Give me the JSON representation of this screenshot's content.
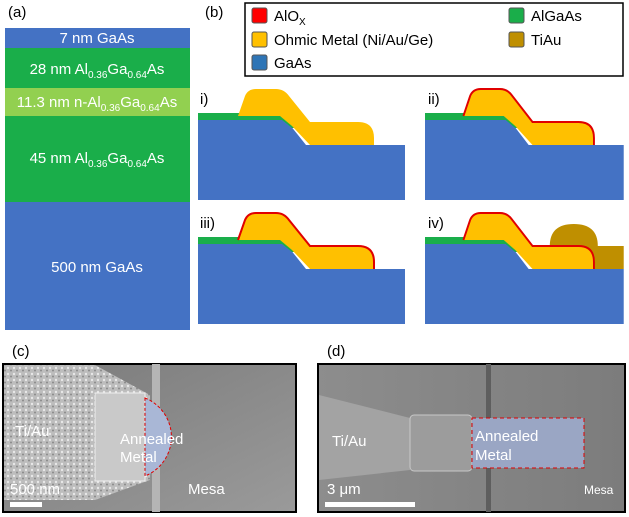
{
  "panel_a": {
    "label": "(a)",
    "layers": [
      [
        "7 nm GaAs"
      ],
      [
        "28 nm Al",
        "0.36",
        "Ga",
        "0.64",
        "As"
      ],
      [
        "11.3 nm n-Al",
        "0.36",
        "Ga",
        "0.64",
        "As"
      ],
      [
        "45 nm Al",
        "0.36",
        "Ga",
        "0.64",
        "As"
      ],
      [
        "500 nm GaAs"
      ]
    ]
  },
  "panel_b": {
    "label": "(b)",
    "legend": {
      "alox": [
        "AlO",
        "X"
      ],
      "ohmic": "Ohmic Metal (Ni/Au/Ge)",
      "gaas": "GaAs",
      "algaas": "AlGaAs",
      "tiau": "TiAu"
    },
    "steps": [
      "i)",
      "ii)",
      "iii)",
      "iv)"
    ]
  },
  "panel_c": {
    "label": "(c)",
    "tiau": "Ti/Au",
    "annealed": [
      "Annealed",
      "Metal"
    ],
    "mesa": "Mesa",
    "scale": "500 nm"
  },
  "panel_d": {
    "label": "(d)",
    "tiau": "Ti/Au",
    "annealed": [
      "Annealed",
      "Metal"
    ],
    "mesa": "Mesa",
    "scale": "3 μm"
  }
}
